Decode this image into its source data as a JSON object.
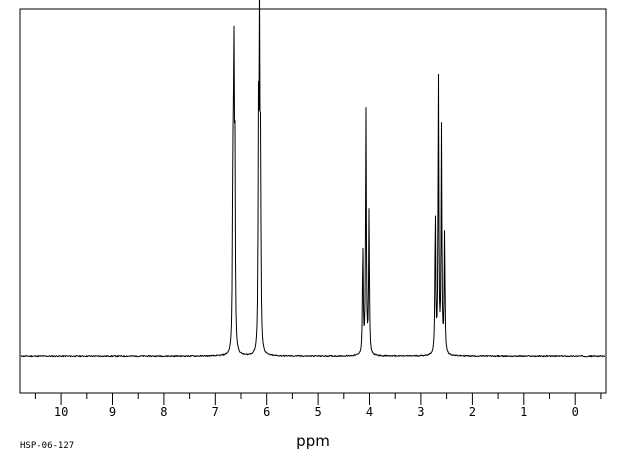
{
  "chart_data": {
    "type": "line",
    "title": "",
    "xlabel": "ppm",
    "ylabel": "",
    "xlim": [
      10.8,
      -0.6
    ],
    "x_reversed": true,
    "ylim": [
      -0.12,
      1.13
    ],
    "x_ticks_major": [
      10,
      9,
      8,
      7,
      6,
      5,
      4,
      3,
      2,
      1,
      0
    ],
    "x_tick_labels": [
      "10",
      "9",
      "8",
      "7",
      "6",
      "5",
      "4",
      "3",
      "2",
      "1",
      "0"
    ],
    "x_ticks_minor_step": 0.5,
    "grid": false,
    "series": [
      {
        "peaks": [
          {
            "ppm": 6.66,
            "intensity": 0.55
          },
          {
            "ppm": 6.64,
            "intensity": 0.96
          },
          {
            "ppm": 6.62,
            "intensity": 0.66
          },
          {
            "ppm": 6.16,
            "intensity": 0.7
          },
          {
            "ppm": 6.14,
            "intensity": 1.0
          },
          {
            "ppm": 6.12,
            "intensity": 0.58
          },
          {
            "ppm": 4.13,
            "intensity": 0.36
          },
          {
            "ppm": 4.07,
            "intensity": 0.8
          },
          {
            "ppm": 4.01,
            "intensity": 0.46
          },
          {
            "ppm": 2.72,
            "intensity": 0.48
          },
          {
            "ppm": 2.66,
            "intensity": 0.91
          },
          {
            "ppm": 2.6,
            "intensity": 0.73
          },
          {
            "ppm": 2.54,
            "intensity": 0.4
          }
        ]
      }
    ]
  },
  "footer": {
    "sample_id": "HSP-06-127"
  }
}
